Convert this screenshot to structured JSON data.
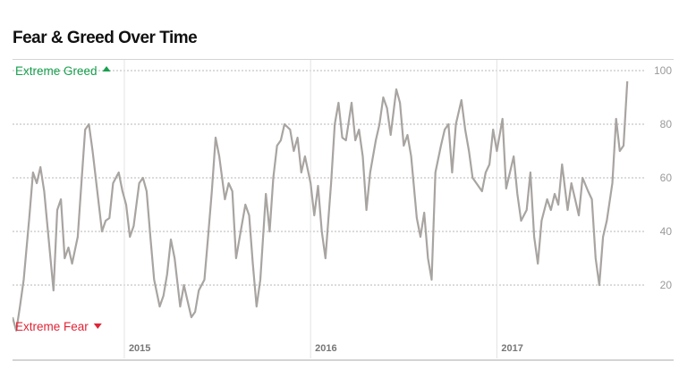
{
  "title": "Fear & Greed Over Time",
  "chart_data": {
    "type": "line",
    "title": "Fear & Greed Over Time",
    "top_label": "Extreme Greed",
    "bottom_label": "Extreme Fear",
    "colors": {
      "line": "#a8a4a1",
      "greed": "#19a04f",
      "fear": "#e02436"
    },
    "ylim": [
      0,
      100
    ],
    "yticks": [
      20,
      40,
      60,
      80,
      100
    ],
    "xlim": [
      2014.4,
      2017.8
    ],
    "xticks": [
      {
        "value": 2015,
        "label": "2015"
      },
      {
        "value": 2016,
        "label": "2016"
      },
      {
        "value": 2017,
        "label": "2017"
      }
    ],
    "grid": true,
    "series": [
      {
        "x": [
          2014.4,
          2014.42,
          2014.44,
          2014.46,
          2014.49,
          2014.51,
          2014.53,
          2014.55,
          2014.57,
          2014.59,
          2014.62,
          2014.64,
          2014.66,
          2014.68,
          2014.7,
          2014.72,
          2014.75,
          2014.77,
          2014.79,
          2014.81,
          2014.83,
          2014.86,
          2014.88,
          2014.9,
          2014.92,
          2014.94,
          2014.97,
          2014.99,
          2015.01,
          2015.03,
          2015.05,
          2015.08,
          2015.1,
          2015.12,
          2015.14,
          2015.16,
          2015.19,
          2015.21,
          2015.23,
          2015.25,
          2015.27,
          2015.3,
          2015.32,
          2015.34,
          2015.36,
          2015.38,
          2015.4,
          2015.43,
          2015.45,
          2015.47,
          2015.49,
          2015.51,
          2015.54,
          2015.56,
          2015.58,
          2015.6,
          2015.62,
          2015.65,
          2015.67,
          2015.69,
          2015.71,
          2015.73,
          2015.76,
          2015.78,
          2015.8,
          2015.82,
          2015.84,
          2015.86,
          2015.89,
          2015.91,
          2015.93,
          2015.95,
          2015.97,
          2016.0,
          2016.02,
          2016.04,
          2016.06,
          2016.08,
          2016.11,
          2016.13,
          2016.15,
          2016.17,
          2016.19,
          2016.22,
          2016.24,
          2016.26,
          2016.28,
          2016.3,
          2016.32,
          2016.35,
          2016.37,
          2016.39,
          2016.41,
          2016.43,
          2016.46,
          2016.48,
          2016.5,
          2016.52,
          2016.54,
          2016.57,
          2016.59,
          2016.61,
          2016.63,
          2016.65,
          2016.67,
          2016.7,
          2016.72,
          2016.74,
          2016.76,
          2016.78,
          2016.81,
          2016.83,
          2016.85,
          2016.87,
          2016.89,
          2016.92,
          2016.94,
          2016.96,
          2016.98,
          2017.0,
          2017.03,
          2017.05,
          2017.07,
          2017.09,
          2017.11,
          2017.13,
          2017.16,
          2017.18,
          2017.2,
          2017.22,
          2017.24,
          2017.27,
          2017.29,
          2017.31,
          2017.33,
          2017.35,
          2017.38,
          2017.4,
          2017.42,
          2017.44,
          2017.46,
          2017.49,
          2017.51,
          2017.53,
          2017.55,
          2017.57,
          2017.59,
          2017.62,
          2017.64,
          2017.66,
          2017.68,
          2017.7
        ],
        "values": [
          8,
          3,
          12,
          22,
          45,
          62,
          58,
          64,
          55,
          40,
          18,
          48,
          52,
          30,
          34,
          28,
          38,
          58,
          78,
          80,
          70,
          52,
          40,
          44,
          45,
          58,
          62,
          55,
          50,
          38,
          42,
          58,
          60,
          55,
          38,
          22,
          12,
          16,
          24,
          37,
          30,
          12,
          20,
          14,
          8,
          10,
          18,
          22,
          38,
          55,
          75,
          68,
          52,
          58,
          55,
          30,
          38,
          50,
          46,
          28,
          12,
          22,
          54,
          40,
          60,
          72,
          74,
          80,
          78,
          70,
          75,
          62,
          68,
          58,
          46,
          57,
          40,
          30,
          58,
          80,
          88,
          75,
          74,
          88,
          74,
          78,
          68,
          48,
          62,
          74,
          80,
          90,
          86,
          76,
          93,
          88,
          72,
          76,
          68,
          45,
          38,
          47,
          30,
          22,
          62,
          72,
          78,
          80,
          62,
          80,
          89,
          78,
          70,
          60,
          58,
          55,
          62,
          65,
          78,
          70,
          82,
          56,
          62,
          68,
          54,
          44,
          48,
          62,
          38,
          28,
          44,
          52,
          48,
          54,
          50,
          65,
          48,
          58,
          52,
          46,
          60,
          55,
          52,
          30,
          20,
          38,
          44,
          58,
          82,
          70,
          72,
          96
        ]
      }
    ]
  }
}
